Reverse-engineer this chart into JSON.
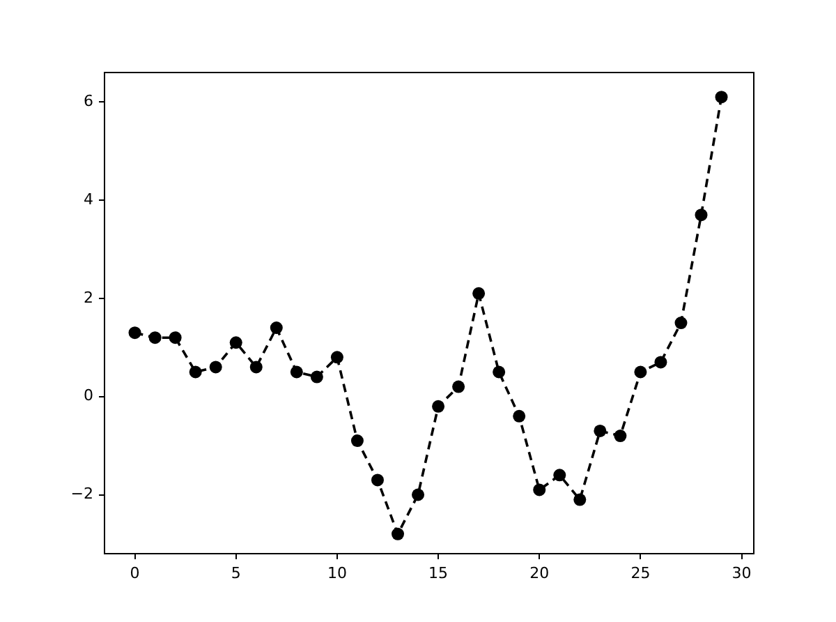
{
  "chart_data": {
    "type": "line",
    "x": [
      0,
      1,
      2,
      3,
      4,
      5,
      6,
      7,
      8,
      9,
      10,
      11,
      12,
      13,
      14,
      15,
      16,
      17,
      18,
      19,
      20,
      21,
      22,
      23,
      24,
      25,
      26,
      27,
      28,
      29
    ],
    "series": [
      {
        "color": "#000000",
        "values": [
          1.3,
          1.2,
          1.2,
          0.5,
          0.6,
          1.1,
          0.6,
          1.4,
          0.5,
          0.4,
          0.8,
          -0.9,
          -1.7,
          -2.8,
          -2.0,
          -0.2,
          0.2,
          2.1,
          0.5,
          -0.4,
          -1.9,
          -1.6,
          -2.1,
          -0.7,
          -0.8,
          0.5,
          0.7,
          1.5,
          3.7,
          6.1
        ]
      }
    ],
    "xlim": [
      -1.5,
      30.6
    ],
    "xticks": [
      0,
      5,
      10,
      15,
      20,
      25,
      30
    ],
    "ylim": [
      -3.2,
      6.6
    ],
    "yticks": [
      -2,
      0,
      2,
      4,
      6
    ],
    "grid": false,
    "legend": false,
    "marker": "circle",
    "line_style": "dashed"
  }
}
